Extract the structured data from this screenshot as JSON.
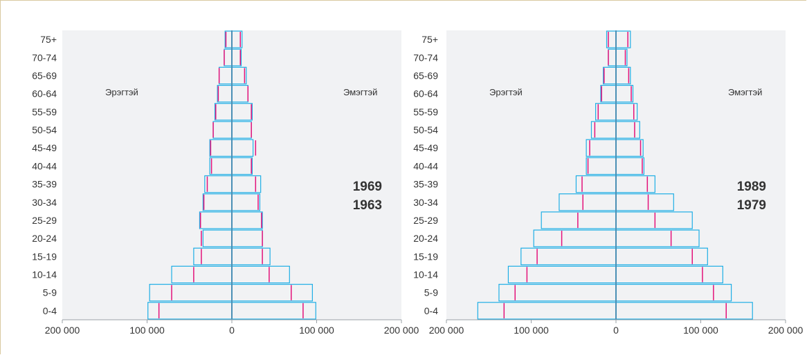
{
  "colors": {
    "outline": "#1eaee5",
    "marker": "#e3127a",
    "axis": "#4a8fb5",
    "panel_bg": "#f1f2f4",
    "text": "#333333"
  },
  "chart_data": [
    {
      "type": "population-pyramid",
      "categories": [
        "0-4",
        "5-9",
        "10-14",
        "15-19",
        "20-24",
        "25-29",
        "30-34",
        "35-39",
        "40-44",
        "45-49",
        "50-54",
        "55-59",
        "60-64",
        "65-69",
        "70-74",
        "75+"
      ],
      "left_label": "Эрэгтэй",
      "right_label": "Эмэгтэй",
      "xlim": [
        -200000,
        200000
      ],
      "xticks": [
        "200 000",
        "100 000",
        "0",
        "100 000",
        "200 000"
      ],
      "grid": false,
      "series": [
        {
          "name": "1969",
          "role": "bars",
          "male": [
            99000,
            97000,
            71000,
            45000,
            34000,
            38000,
            34000,
            32000,
            26000,
            26000,
            22000,
            20000,
            17000,
            15000,
            9000,
            8000
          ],
          "female": [
            99000,
            95000,
            68000,
            45000,
            36000,
            36000,
            33000,
            34000,
            24000,
            25000,
            23000,
            24000,
            19000,
            17000,
            11000,
            12000
          ]
        },
        {
          "name": "1963",
          "role": "markers",
          "male": [
            86000,
            71000,
            45000,
            36000,
            36000,
            37000,
            33000,
            29000,
            24000,
            25000,
            22000,
            19000,
            16000,
            15000,
            9000,
            7000
          ],
          "female": [
            84000,
            70000,
            44000,
            36000,
            36000,
            35000,
            31000,
            28000,
            23000,
            28000,
            23000,
            23000,
            19000,
            15000,
            10000,
            10000
          ]
        }
      ]
    },
    {
      "type": "population-pyramid",
      "categories": [
        "0-4",
        "5-9",
        "10-14",
        "15-19",
        "20-24",
        "25-29",
        "30-34",
        "35-39",
        "40-44",
        "45-49",
        "50-54",
        "55-59",
        "60-64",
        "65-69",
        "70-74",
        "75+"
      ],
      "left_label": "Эрэгтэй",
      "right_label": "Эмэгтэй",
      "xlim": [
        -200000,
        200000
      ],
      "xticks": [
        "200 000",
        "100 000",
        "0",
        "100 000",
        "200 000"
      ],
      "grid": false,
      "series": [
        {
          "name": "1989",
          "role": "bars",
          "male": [
            163000,
            138000,
            127000,
            112000,
            97000,
            88000,
            67000,
            47000,
            35000,
            35000,
            29000,
            24000,
            18000,
            15000,
            9000,
            11000
          ],
          "female": [
            161000,
            136000,
            126000,
            108000,
            98000,
            90000,
            68000,
            46000,
            33000,
            32000,
            28000,
            25000,
            20000,
            17000,
            13000,
            17000
          ]
        },
        {
          "name": "1979",
          "role": "markers",
          "male": [
            132000,
            119000,
            105000,
            93000,
            64000,
            45000,
            39000,
            40000,
            33000,
            31000,
            25000,
            21000,
            17000,
            14000,
            9000,
            9000
          ],
          "female": [
            130000,
            115000,
            102000,
            90000,
            65000,
            46000,
            38000,
            37000,
            31000,
            29000,
            22000,
            21000,
            18000,
            15000,
            11000,
            14000
          ]
        }
      ]
    }
  ]
}
